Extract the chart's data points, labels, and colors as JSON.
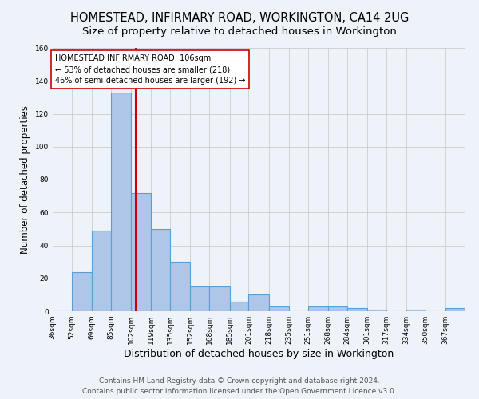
{
  "title": "HOMESTEAD, INFIRMARY ROAD, WORKINGTON, CA14 2UG",
  "subtitle": "Size of property relative to detached houses in Workington",
  "xlabel": "Distribution of detached houses by size in Workington",
  "ylabel": "Number of detached properties",
  "bar_labels": [
    "36sqm",
    "52sqm",
    "69sqm",
    "85sqm",
    "102sqm",
    "119sqm",
    "135sqm",
    "152sqm",
    "168sqm",
    "185sqm",
    "201sqm",
    "218sqm",
    "235sqm",
    "251sqm",
    "268sqm",
    "284sqm",
    "301sqm",
    "317sqm",
    "334sqm",
    "350sqm",
    "367sqm"
  ],
  "bar_values": [
    0,
    24,
    49,
    133,
    72,
    50,
    30,
    15,
    15,
    6,
    10,
    3,
    0,
    3,
    3,
    2,
    1,
    0,
    1,
    0,
    2
  ],
  "bin_edges": [
    36,
    52,
    69,
    85,
    102,
    119,
    135,
    152,
    168,
    185,
    201,
    218,
    235,
    251,
    268,
    284,
    301,
    317,
    334,
    350,
    367,
    383
  ],
  "bar_color": "#aec6e8",
  "bar_edgecolor": "#5a9fd4",
  "property_line_x": 106,
  "vline_color": "#cc0000",
  "annotation_text": "HOMESTEAD INFIRMARY ROAD: 106sqm\n← 53% of detached houses are smaller (218)\n46% of semi-detached houses are larger (192) →",
  "annotation_box_color": "#ffffff",
  "annotation_box_edgecolor": "#cc0000",
  "footer1": "Contains HM Land Registry data © Crown copyright and database right 2024.",
  "footer2": "Contains public sector information licensed under the Open Government Licence v3.0.",
  "ylim": [
    0,
    160
  ],
  "background_color": "#eef2f9",
  "grid_color": "#cccccc",
  "title_fontsize": 10.5,
  "xlabel_fontsize": 9,
  "ylabel_fontsize": 8.5,
  "tick_fontsize": 6.5,
  "footer_fontsize": 6.5
}
